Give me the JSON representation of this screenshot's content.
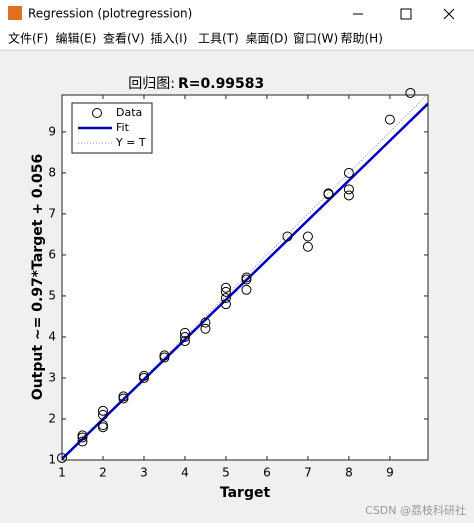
{
  "window": {
    "title": "Regression (plotregression)",
    "menu": [
      "文件(F)",
      "编辑(E)",
      "查看(V)",
      "插入(I)",
      "工具(T)",
      "桌面(D)",
      "窗口(W)",
      "帮助(H)"
    ],
    "watermark": "CSDN @荔枝科研社"
  },
  "chart_data": {
    "type": "scatter",
    "title": "回归图:",
    "title_r": "R=0.99583",
    "x_label": "Target",
    "y_label": "Output ~= 0.97*Target + 0.056",
    "xlim": [
      1,
      9.93
    ],
    "ylim": [
      1,
      9.9
    ],
    "xticks": [
      1,
      2,
      3,
      4,
      5,
      6,
      7,
      8,
      9
    ],
    "yticks": [
      1,
      2,
      3,
      4,
      5,
      6,
      7,
      8,
      9
    ],
    "series": [
      {
        "name": "Data",
        "color": "#000000",
        "x": [
          1,
          1.5,
          1.5,
          1.5,
          2,
          2,
          2,
          2,
          2.5,
          2.5,
          3,
          3,
          3.5,
          3.5,
          4,
          4,
          4,
          4.5,
          4.5,
          5,
          5,
          5,
          5,
          5.5,
          5.5,
          5.5,
          6.5,
          7,
          7,
          7.5,
          7.5,
          8,
          8,
          8,
          9,
          9.5
        ],
        "values": [
          1.05,
          1.6,
          1.55,
          1.45,
          2.2,
          2.1,
          1.85,
          1.8,
          2.55,
          2.5,
          3.05,
          3.0,
          3.55,
          3.5,
          4.1,
          4.0,
          3.9,
          4.35,
          4.2,
          5.2,
          5.1,
          4.95,
          4.8,
          5.45,
          5.4,
          5.15,
          6.45,
          6.45,
          6.2,
          7.5,
          7.48,
          8.0,
          7.6,
          7.45,
          9.3,
          9.95
        ]
      }
    ],
    "fit": {
      "name": "Fit",
      "color": "#0000c0",
      "slope": 0.97,
      "intercept": 0.056
    },
    "identity": {
      "name": "Y = T",
      "color": "#888888"
    }
  }
}
